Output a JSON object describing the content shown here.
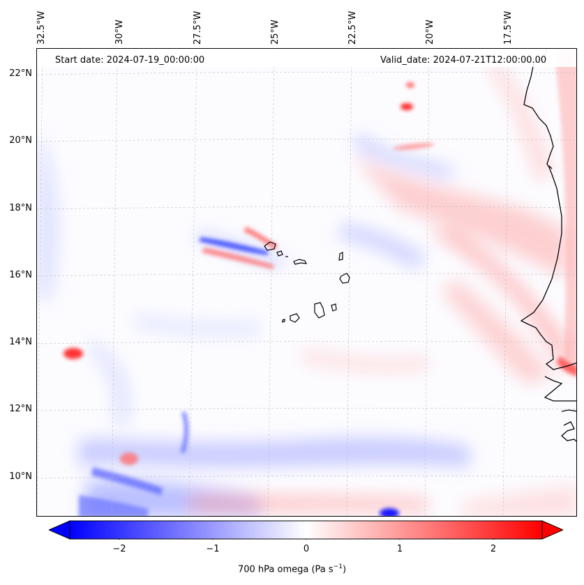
{
  "header": {
    "start_date": "Start date: 2024-07-19_00:00:00",
    "valid_date": "Valid_date: 2024-07-21T12:00:00.00"
  },
  "axes": {
    "longitude_labels": [
      "32.5°W",
      "30°W",
      "27.5°W",
      "25°W",
      "22.5°W",
      "20°W",
      "17.5°W"
    ],
    "latitude_labels": [
      "22°N",
      "20°N",
      "18°N",
      "16°N",
      "14°N",
      "12°N",
      "10°N"
    ]
  },
  "colorbar": {
    "ticks": [
      "−2",
      "−1",
      "0",
      "1",
      "2"
    ],
    "label_prefix": "700 hPa omega (Pa s",
    "label_exp": "−1",
    "label_suffix": ")",
    "colors": {
      "negative": "#0000ff",
      "zero": "#ffffff",
      "positive": "#ff0000"
    }
  }
}
